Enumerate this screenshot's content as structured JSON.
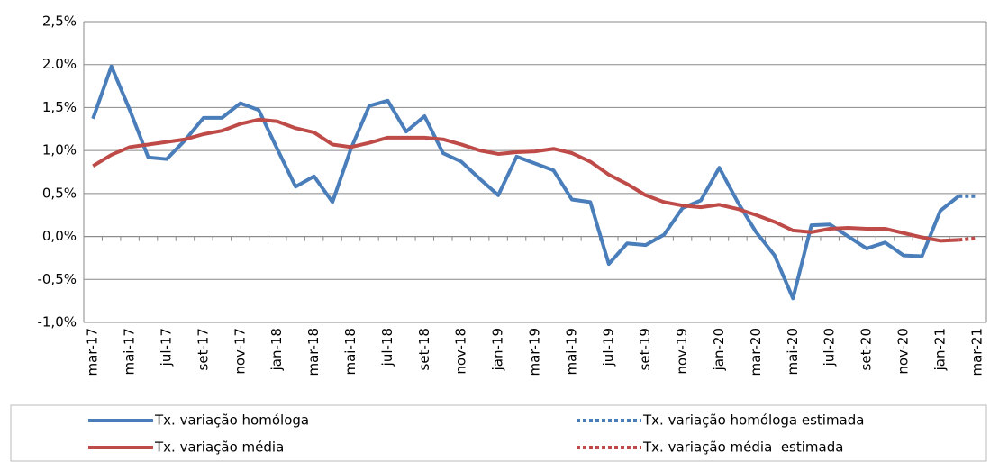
{
  "chart_data": {
    "type": "line",
    "categories": [
      "mar-17",
      null,
      "mai-17",
      null,
      "jul-17",
      null,
      "set-17",
      null,
      "nov-17",
      null,
      "jan-18",
      null,
      "mar-18",
      null,
      "mai-18",
      null,
      "jul-18",
      null,
      "set-18",
      null,
      "nov-18",
      null,
      "jan-19",
      null,
      "mar-19",
      null,
      "mai-19",
      null,
      "jul-19",
      null,
      "set-19",
      null,
      "nov-19",
      null,
      "jan-20",
      null,
      "mar-20",
      null,
      "mai-20",
      null,
      "jul-20",
      null,
      "set-20",
      null,
      "nov-20",
      null,
      "jan-21",
      null,
      "mar-21"
    ],
    "series": [
      {
        "name": "Tx. variação homóloga",
        "color": "#4a7ebb",
        "style": "solid",
        "values": [
          1.37,
          1.98,
          1.47,
          0.92,
          0.9,
          1.12,
          1.38,
          1.38,
          1.55,
          1.47,
          1.02,
          0.58,
          0.7,
          0.4,
          1.02,
          1.52,
          1.58,
          1.22,
          1.4,
          0.97,
          0.87,
          0.67,
          0.48,
          0.93,
          0.85,
          0.77,
          0.43,
          0.4,
          -0.32,
          -0.08,
          -0.1,
          0.02,
          0.33,
          0.42,
          0.8,
          0.4,
          0.05,
          -0.22,
          -0.72,
          0.13,
          0.14,
          0.0,
          -0.14,
          -0.07,
          -0.22,
          -0.23,
          0.3,
          0.47,
          null
        ]
      },
      {
        "name": "Tx. variação homóloga estimada",
        "color": "#4a7ebb",
        "style": "dotted",
        "values": [
          null,
          null,
          null,
          null,
          null,
          null,
          null,
          null,
          null,
          null,
          null,
          null,
          null,
          null,
          null,
          null,
          null,
          null,
          null,
          null,
          null,
          null,
          null,
          null,
          null,
          null,
          null,
          null,
          null,
          null,
          null,
          null,
          null,
          null,
          null,
          null,
          null,
          null,
          null,
          null,
          null,
          null,
          null,
          null,
          null,
          null,
          null,
          0.47,
          0.47
        ]
      },
      {
        "name": "Tx. variação média",
        "color": "#be4b48",
        "style": "solid",
        "values": [
          0.82,
          0.95,
          1.04,
          1.07,
          1.1,
          1.13,
          1.19,
          1.23,
          1.31,
          1.36,
          1.34,
          1.26,
          1.21,
          1.07,
          1.04,
          1.09,
          1.15,
          1.15,
          1.15,
          1.13,
          1.07,
          1.0,
          0.96,
          0.98,
          0.99,
          1.02,
          0.97,
          0.87,
          0.72,
          0.61,
          0.48,
          0.4,
          0.36,
          0.34,
          0.37,
          0.32,
          0.25,
          0.17,
          0.07,
          0.05,
          0.09,
          0.1,
          0.09,
          0.09,
          0.04,
          -0.01,
          -0.05,
          -0.04,
          null
        ]
      },
      {
        "name": "Tx. variação média  estimada",
        "color": "#be4b48",
        "style": "dotted",
        "values": [
          null,
          null,
          null,
          null,
          null,
          null,
          null,
          null,
          null,
          null,
          null,
          null,
          null,
          null,
          null,
          null,
          null,
          null,
          null,
          null,
          null,
          null,
          null,
          null,
          null,
          null,
          null,
          null,
          null,
          null,
          null,
          null,
          null,
          null,
          null,
          null,
          null,
          null,
          null,
          null,
          null,
          null,
          null,
          null,
          null,
          null,
          null,
          -0.04,
          -0.02
        ]
      }
    ],
    "ylim": [
      -1.0,
      2.5
    ],
    "yticks": [
      {
        "value": -1.0,
        "label": "-1,0%"
      },
      {
        "value": -0.5,
        "label": "-0,5%"
      },
      {
        "value": 0.0,
        "label": "0,0%"
      },
      {
        "value": 0.5,
        "label": "0,5%"
      },
      {
        "value": 1.0,
        "label": "1,0%"
      },
      {
        "value": 1.5,
        "label": "1,5%"
      },
      {
        "value": 2.0,
        "label": "2.0%"
      },
      {
        "value": 2.5,
        "label": "2,5%"
      }
    ],
    "grid": true
  }
}
